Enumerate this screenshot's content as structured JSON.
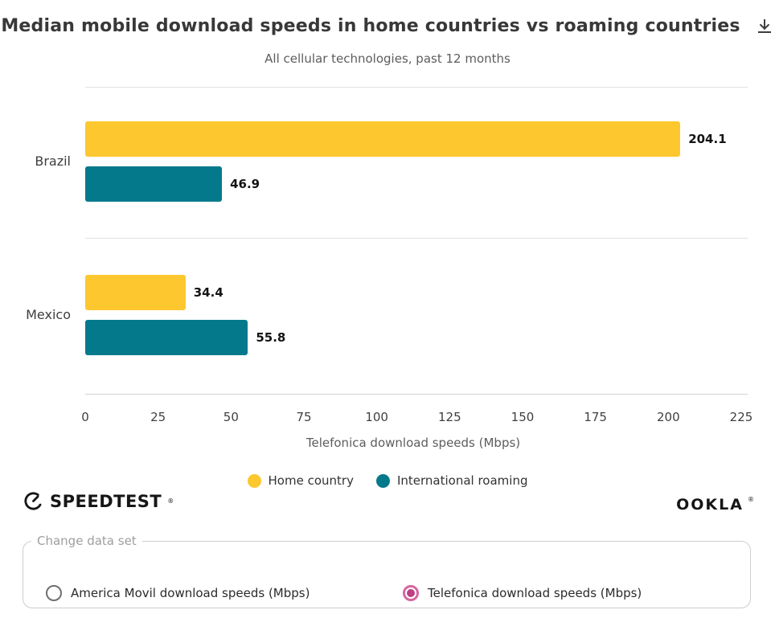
{
  "header": {
    "title": "Median mobile download speeds in home countries vs roaming countries",
    "subtitle": "All cellular technologies, past 12 months"
  },
  "icons": {
    "download": "arrow-down-to-line",
    "speedtest_gauge": "speedometer-gauge"
  },
  "chart_data": {
    "type": "bar",
    "orientation": "horizontal",
    "categories": [
      "Brazil",
      "Mexico"
    ],
    "series": [
      {
        "name": "Home country",
        "color": "#FDC72F",
        "values": [
          204.1,
          34.4
        ]
      },
      {
        "name": "International roaming",
        "color": "#04798C",
        "values": [
          46.9,
          55.8
        ]
      }
    ],
    "xlabel": "Telefonica download speeds (Mbps)",
    "xlim": [
      0,
      225
    ],
    "xticks": [
      0,
      25,
      50,
      75,
      100,
      125,
      150,
      175,
      200,
      225
    ],
    "grid": "horizontal section divider lines only",
    "legend_position": "bottom-center",
    "value_labels_shown": true
  },
  "branding": {
    "speedtest": "SPEEDTEST",
    "ookla": "OOKLA",
    "registered_mark": "®"
  },
  "controls": {
    "group_label": "Change data set",
    "options": [
      {
        "label": "America Movil download speeds (Mbps)",
        "selected": false
      },
      {
        "label": "Telefonica download speeds (Mbps)",
        "selected": true
      }
    ],
    "accent_color": "#BE3F83"
  },
  "colors": {
    "home_country": "#FDC72F",
    "international_roaming": "#04798C",
    "gridline": "#E2E2E2",
    "title_text": "#383838"
  }
}
